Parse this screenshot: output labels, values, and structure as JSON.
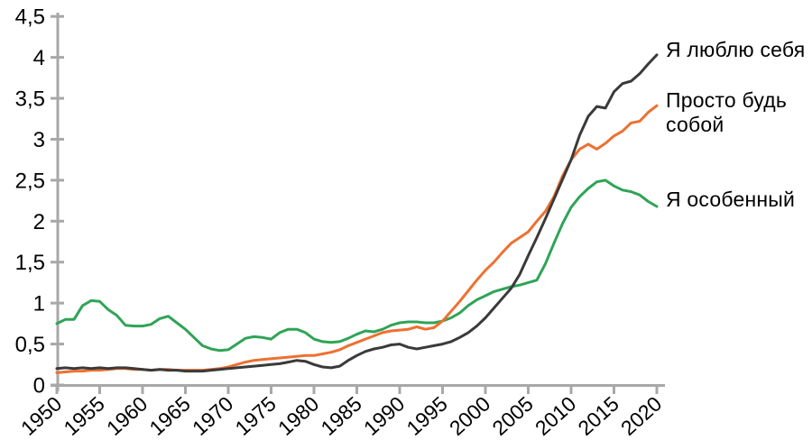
{
  "chart_data": {
    "type": "line",
    "title": "",
    "xlabel": "",
    "ylabel": "",
    "grid": false,
    "legend_position": "right",
    "axis_color": "#a8a8a8",
    "label_color": "#000000",
    "xlim": [
      1950,
      2020
    ],
    "ylim": [
      0,
      4.5
    ],
    "x": [
      1950,
      1951,
      1952,
      1953,
      1954,
      1955,
      1956,
      1957,
      1958,
      1959,
      1960,
      1961,
      1962,
      1963,
      1964,
      1965,
      1966,
      1967,
      1968,
      1969,
      1970,
      1971,
      1972,
      1973,
      1974,
      1975,
      1976,
      1977,
      1978,
      1979,
      1980,
      1981,
      1982,
      1983,
      1984,
      1985,
      1986,
      1987,
      1988,
      1989,
      1990,
      1991,
      1992,
      1993,
      1994,
      1995,
      1996,
      1997,
      1998,
      1999,
      2000,
      2001,
      2002,
      2003,
      2004,
      2005,
      2006,
      2007,
      2008,
      2009,
      2010,
      2011,
      2012,
      2013,
      2014,
      2015,
      2016,
      2017,
      2018,
      2019,
      2020
    ],
    "x_ticks": [
      1950,
      1955,
      1960,
      1965,
      1970,
      1975,
      1980,
      1985,
      1990,
      1995,
      2000,
      2005,
      2010,
      2015,
      2020
    ],
    "x_tick_labels": [
      "1950",
      "1955",
      "1960",
      "1965",
      "1970",
      "1975",
      "1980",
      "1985",
      "1990",
      "1995",
      "2000",
      "2005",
      "2010",
      "2015",
      "2020"
    ],
    "y_ticks": [
      0,
      0.5,
      1,
      1.5,
      2,
      2.5,
      3,
      3.5,
      4,
      4.5
    ],
    "y_tick_labels": [
      "0",
      "0,5",
      "1",
      "1,5",
      "2",
      "2,5",
      "3",
      "3,5",
      "4",
      "4,5"
    ],
    "series": [
      {
        "name": "Я люблю себя",
        "color": "#3a3a3a",
        "values": [
          0.2,
          0.21,
          0.2,
          0.21,
          0.2,
          0.21,
          0.2,
          0.21,
          0.21,
          0.2,
          0.19,
          0.18,
          0.19,
          0.18,
          0.18,
          0.17,
          0.17,
          0.17,
          0.18,
          0.19,
          0.2,
          0.21,
          0.22,
          0.23,
          0.24,
          0.25,
          0.26,
          0.28,
          0.3,
          0.29,
          0.25,
          0.22,
          0.21,
          0.23,
          0.3,
          0.36,
          0.41,
          0.44,
          0.46,
          0.49,
          0.5,
          0.46,
          0.44,
          0.46,
          0.48,
          0.5,
          0.53,
          0.58,
          0.64,
          0.72,
          0.82,
          0.94,
          1.06,
          1.18,
          1.35,
          1.58,
          1.8,
          2.03,
          2.27,
          2.51,
          2.75,
          3.05,
          3.28,
          3.4,
          3.38,
          3.58,
          3.68,
          3.71,
          3.8,
          3.92,
          4.03
        ]
      },
      {
        "name": "Просто будь собой",
        "color": "#ee7030",
        "values": [
          0.15,
          0.16,
          0.17,
          0.17,
          0.18,
          0.18,
          0.19,
          0.2,
          0.2,
          0.19,
          0.19,
          0.18,
          0.19,
          0.19,
          0.18,
          0.18,
          0.18,
          0.18,
          0.19,
          0.2,
          0.22,
          0.25,
          0.28,
          0.3,
          0.31,
          0.32,
          0.33,
          0.34,
          0.35,
          0.36,
          0.36,
          0.38,
          0.4,
          0.43,
          0.48,
          0.52,
          0.56,
          0.6,
          0.64,
          0.66,
          0.67,
          0.68,
          0.71,
          0.68,
          0.7,
          0.78,
          0.9,
          1.02,
          1.15,
          1.28,
          1.4,
          1.5,
          1.62,
          1.73,
          1.8,
          1.87,
          2.0,
          2.12,
          2.3,
          2.55,
          2.75,
          2.88,
          2.94,
          2.88,
          2.95,
          3.04,
          3.1,
          3.2,
          3.22,
          3.33,
          3.41
        ]
      },
      {
        "name": "Я особенный",
        "color": "#2fa456",
        "values": [
          0.75,
          0.8,
          0.8,
          0.97,
          1.03,
          1.02,
          0.92,
          0.85,
          0.73,
          0.72,
          0.72,
          0.74,
          0.81,
          0.84,
          0.76,
          0.68,
          0.58,
          0.48,
          0.44,
          0.42,
          0.43,
          0.5,
          0.57,
          0.59,
          0.58,
          0.56,
          0.64,
          0.68,
          0.68,
          0.64,
          0.56,
          0.53,
          0.52,
          0.53,
          0.57,
          0.62,
          0.66,
          0.65,
          0.68,
          0.73,
          0.76,
          0.77,
          0.77,
          0.76,
          0.76,
          0.78,
          0.82,
          0.88,
          0.97,
          1.04,
          1.09,
          1.14,
          1.17,
          1.2,
          1.22,
          1.25,
          1.28,
          1.48,
          1.73,
          1.97,
          2.17,
          2.3,
          2.4,
          2.48,
          2.5,
          2.43,
          2.38,
          2.36,
          2.32,
          2.24,
          2.18
        ]
      }
    ]
  }
}
